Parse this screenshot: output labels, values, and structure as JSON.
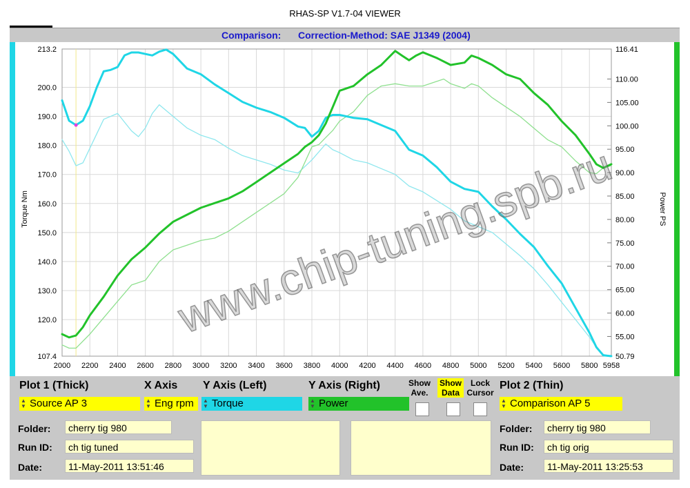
{
  "window": {
    "title": "RHAS-SP V1.7-04  VIEWER"
  },
  "header": {
    "comparison_label": "Comparison:",
    "method_label": "Correction-Method: SAE J1349 (2004)"
  },
  "chart_data": {
    "type": "line",
    "xlim": [
      2000,
      5958
    ],
    "x_ticks": [
      "2000",
      "2200",
      "2400",
      "2600",
      "2800",
      "3000",
      "3200",
      "3400",
      "3600",
      "3800",
      "4000",
      "4200",
      "4400",
      "4600",
      "4800",
      "5000",
      "5200",
      "5400",
      "5600",
      "5800",
      "5958"
    ],
    "ylabel_left": "Torque Nm",
    "ylabel_right": "Power PS",
    "ylim_left": [
      107.4,
      213.2
    ],
    "ylim_right": [
      50.79,
      116.41
    ],
    "y_ticks_left": [
      "213.2",
      "200.0",
      "190.0",
      "180.0",
      "170.0",
      "160.0",
      "150.0",
      "140.0",
      "130.0",
      "120.0",
      "107.4"
    ],
    "y_ticks_right": [
      "116.41",
      "110.00",
      "105.00",
      "100.00",
      "95.00",
      "90.00",
      "85.00",
      "80.00",
      "75.00",
      "70.00",
      "65.00",
      "60.00",
      "55.00",
      "50.79"
    ],
    "grid": true,
    "cursor_rpm": 2100,
    "series": [
      {
        "name": "Torque",
        "axis": "left",
        "weight": "thick",
        "color": "#1fd6e6",
        "x": [
          2000,
          2050,
          2100,
          2150,
          2200,
          2250,
          2300,
          2350,
          2400,
          2450,
          2500,
          2550,
          2600,
          2650,
          2700,
          2750,
          2800,
          2900,
          3000,
          3100,
          3200,
          3300,
          3400,
          3500,
          3600,
          3700,
          3750,
          3800,
          3850,
          3900,
          3950,
          4000,
          4100,
          4200,
          4300,
          4400,
          4500,
          4600,
          4700,
          4800,
          4900,
          5000,
          5100,
          5200,
          5300,
          5400,
          5500,
          5600,
          5700,
          5800,
          5850,
          5900,
          5958
        ],
        "y": [
          195.5,
          188.5,
          187,
          188.5,
          193.5,
          200,
          205.5,
          206,
          207,
          211,
          212,
          212,
          211.5,
          211,
          212.3,
          213,
          211.5,
          206.5,
          204.5,
          201,
          198,
          195,
          193,
          191.5,
          189.5,
          186.5,
          186,
          183,
          185,
          189.5,
          190.5,
          190.5,
          189.5,
          189,
          187,
          185,
          178.5,
          176.5,
          172.5,
          167.5,
          165,
          164,
          159,
          154.5,
          149.5,
          145,
          138.5,
          132.5,
          124,
          115.5,
          110.5,
          107.7,
          107.4
        ]
      },
      {
        "name": "Power",
        "axis": "right",
        "weight": "thick",
        "color": "#22c22a",
        "x": [
          2000,
          2050,
          2100,
          2150,
          2200,
          2300,
          2400,
          2500,
          2600,
          2700,
          2800,
          2900,
          3000,
          3100,
          3200,
          3300,
          3400,
          3500,
          3600,
          3700,
          3750,
          3800,
          3850,
          3900,
          3950,
          4000,
          4100,
          4200,
          4300,
          4350,
          4400,
          4450,
          4500,
          4550,
          4600,
          4700,
          4800,
          4900,
          4950,
          5000,
          5100,
          5200,
          5300,
          5400,
          5500,
          5600,
          5700,
          5800,
          5850,
          5900,
          5958
        ],
        "y": [
          55.5,
          54.8,
          55.2,
          57,
          59.5,
          63.5,
          68,
          71.5,
          74,
          77,
          79.5,
          81,
          82.5,
          83.5,
          84.5,
          86,
          88,
          90,
          92,
          94,
          95.5,
          96.5,
          98,
          100.5,
          104,
          107.5,
          108.5,
          111,
          113,
          114.5,
          116,
          115,
          114,
          115,
          115.7,
          114.5,
          113,
          113.5,
          115,
          114.5,
          113,
          111,
          110,
          107,
          104.5,
          101,
          98,
          94,
          91.8,
          91,
          91.8
        ]
      },
      {
        "name": "Torque",
        "axis": "left",
        "weight": "thin",
        "color": "#8ee7ee",
        "x": [
          2000,
          2050,
          2100,
          2150,
          2200,
          2300,
          2400,
          2500,
          2550,
          2600,
          2650,
          2700,
          2800,
          2900,
          3000,
          3100,
          3200,
          3300,
          3400,
          3500,
          3600,
          3700,
          3800,
          3900,
          3950,
          4000,
          4100,
          4200,
          4300,
          4400,
          4500,
          4600,
          4700,
          4800,
          4900,
          5000,
          5100,
          5200,
          5300,
          5400,
          5500,
          5600,
          5700,
          5800,
          5850,
          5900,
          5958
        ],
        "y": [
          182,
          178,
          173,
          174,
          179,
          189,
          191,
          185,
          183,
          186,
          191,
          194,
          190,
          186,
          183.5,
          182,
          179,
          176.5,
          175,
          173.5,
          171.5,
          170.5,
          175,
          180.5,
          178.5,
          177.5,
          175,
          174,
          172,
          170,
          166,
          164,
          161,
          158,
          154,
          152,
          150,
          146,
          142,
          137.5,
          132,
          126,
          120,
          114,
          110.5,
          108,
          107.4
        ]
      },
      {
        "name": "Power",
        "axis": "right",
        "weight": "thin",
        "color": "#8fe08f",
        "x": [
          2000,
          2050,
          2100,
          2200,
          2300,
          2400,
          2500,
          2600,
          2700,
          2800,
          2900,
          3000,
          3100,
          3200,
          3300,
          3400,
          3500,
          3600,
          3700,
          3800,
          3850,
          3900,
          3950,
          4000,
          4100,
          4200,
          4300,
          4400,
          4500,
          4600,
          4700,
          4750,
          4800,
          4900,
          4950,
          5000,
          5100,
          5200,
          5300,
          5400,
          5500,
          5600,
          5700,
          5800,
          5850,
          5900,
          5958
        ],
        "y": [
          53.2,
          52.5,
          52.5,
          55.5,
          59,
          62.5,
          66,
          67,
          71,
          73.5,
          74.5,
          75.5,
          76,
          77.5,
          79.5,
          81.5,
          83.5,
          85.5,
          89,
          95.5,
          96,
          97.5,
          99,
          101,
          103,
          106.5,
          108.5,
          109,
          108.5,
          108.5,
          109.5,
          110,
          109,
          108,
          109,
          108.5,
          106,
          104,
          102,
          99.5,
          97,
          95.5,
          92.5,
          90,
          89.8,
          91,
          91.5
        ]
      }
    ]
  },
  "controls": {
    "plot1_label": "Plot 1 (Thick)",
    "xaxis_label": "X Axis",
    "yleft_label": "Y Axis (Left)",
    "yright_label": "Y Axis (Right)",
    "show_ave_label": "Show Ave.",
    "show_data_label": "Show Data",
    "lock_cursor_label": "Lock Cursor",
    "plot2_label": "Plot 2 (Thin)",
    "plot1_source": "Source AP 3",
    "xaxis_value": "Eng rpm",
    "yleft_value": "Torque",
    "yright_value": "Power",
    "plot2_source": "Comparison AP 5",
    "colors": {
      "plot1": "#ffff00",
      "yleft": "#1fd6e6",
      "yright": "#22c22a",
      "show_data_bg": "#ffff00"
    }
  },
  "run1": {
    "folder_label": "Folder:",
    "folder": "cherry tig 980",
    "runid_label": "Run ID:",
    "runid": "ch tig tuned",
    "date_label": "Date:",
    "date": "11-May-2011  13:51:46"
  },
  "run2": {
    "folder_label": "Folder:",
    "folder": "cherry tig 980",
    "runid_label": "Run ID:",
    "runid": "ch tig orig",
    "date_label": "Date:",
    "date": "11-May-2011  13:25:53"
  },
  "watermark": "www.chip-tuning.spb.ru"
}
